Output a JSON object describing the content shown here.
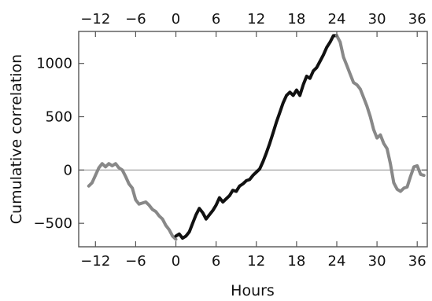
{
  "chart_data": {
    "type": "line",
    "title": "",
    "xlabel": "Hours",
    "ylabel": "Cumulative correlation",
    "xlim": [
      -14.5,
      37.5
    ],
    "ylim": [
      -720,
      1300
    ],
    "x_ticks": [
      -12,
      -6,
      0,
      6,
      12,
      18,
      24,
      30,
      36
    ],
    "x_tick_labels": [
      "−12",
      "−6",
      "0",
      "6",
      "12",
      "18",
      "24",
      "30",
      "36"
    ],
    "y_ticks": [
      -500,
      0,
      500,
      1000
    ],
    "y_tick_labels": [
      "−500",
      "0",
      "500",
      "1000"
    ],
    "x_ticks_top": true,
    "grid": false,
    "zero_line": true,
    "legend": "none",
    "colors": {
      "gray": "#888888",
      "black": "#111111",
      "zero_line": "#999999",
      "frame": "#555555"
    },
    "series": [
      {
        "color": "gray",
        "x": [
          -13,
          -12.5,
          -12,
          -11.5,
          -11,
          -10.5,
          -10,
          -9.5,
          -9,
          -8.5,
          -8,
          -7.5,
          -7,
          -6.5,
          -6,
          -5.5,
          -5,
          -4.5,
          -4,
          -3.5,
          -3,
          -2.5,
          -2,
          -1.5,
          -1,
          -0.5,
          0
        ],
        "y": [
          -150,
          -120,
          -50,
          20,
          60,
          30,
          60,
          40,
          60,
          20,
          0,
          -60,
          -130,
          -170,
          -280,
          -320,
          -310,
          -300,
          -330,
          -370,
          -390,
          -430,
          -460,
          -520,
          -560,
          -620,
          -650
        ]
      },
      {
        "color": "black",
        "x": [
          0,
          0.5,
          1,
          1.5,
          2,
          2.5,
          3,
          3.5,
          4,
          4.5,
          5,
          5.5,
          6,
          6.5,
          7,
          7.5,
          8,
          8.5,
          9,
          9.5,
          10,
          10.5,
          11,
          11.5,
          12,
          12.5,
          13,
          13.5,
          14,
          14.5,
          15,
          15.5,
          16,
          16.5,
          17,
          17.5,
          18,
          18.5,
          19,
          19.5,
          20,
          20.5,
          21,
          21.5,
          22,
          22.5,
          23,
          23.5,
          24
        ],
        "y": [
          -620,
          -600,
          -640,
          -620,
          -580,
          -500,
          -420,
          -360,
          -400,
          -460,
          -420,
          -380,
          -330,
          -260,
          -300,
          -270,
          -240,
          -190,
          -200,
          -150,
          -130,
          -100,
          -90,
          -50,
          -20,
          10,
          80,
          160,
          250,
          350,
          450,
          540,
          630,
          700,
          730,
          700,
          750,
          700,
          800,
          880,
          860,
          930,
          960,
          1020,
          1080,
          1150,
          1200,
          1260,
          1260
        ]
      },
      {
        "color": "gray",
        "x": [
          24,
          24.5,
          25,
          25.5,
          26,
          26.5,
          27,
          27.5,
          28,
          28.5,
          29,
          29.5,
          30,
          30.5,
          31,
          31.5,
          32,
          32.5,
          33,
          33.5,
          34,
          34.5,
          35,
          35.5,
          36,
          36.5,
          37
        ],
        "y": [
          1260,
          1200,
          1060,
          980,
          900,
          820,
          800,
          760,
          680,
          600,
          500,
          380,
          300,
          330,
          250,
          200,
          60,
          -120,
          -180,
          -200,
          -170,
          -160,
          -60,
          30,
          40,
          -40,
          -50
        ]
      }
    ]
  }
}
